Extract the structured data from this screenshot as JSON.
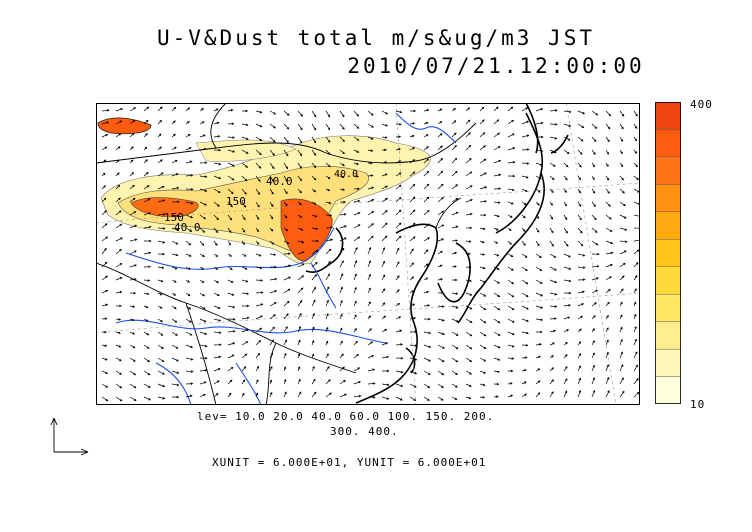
{
  "title": {
    "line1": "U-V&Dust total m/s&ug/m3 JST",
    "line2": "2010/07/21.12:00:00"
  },
  "colorbar": {
    "max_label": "400",
    "min_label": "10",
    "colors": [
      "#ffffdd",
      "#fff6b8",
      "#ffee90",
      "#ffe664",
      "#ffd83a",
      "#ffc418",
      "#ffaa10",
      "#ff9012",
      "#ff7414",
      "#ff5c10",
      "#f04410"
    ]
  },
  "legend": {
    "levels_line1": "lev= 10.0 20.0 40.0 60.0 100. 150. 200.",
    "levels_line2": "300. 400.",
    "units": "XUNIT = 6.000E+01, YUNIT = 6.000E+01"
  },
  "map": {
    "contour_labels": [
      "40.0",
      "40.0",
      "150",
      "150",
      "40.0"
    ],
    "coast_color": "#000000",
    "river_color": "#1e50e6",
    "fill_low": "#fff3b0",
    "fill_mid": "#ffd53a",
    "fill_high": "#ff5c10"
  }
}
